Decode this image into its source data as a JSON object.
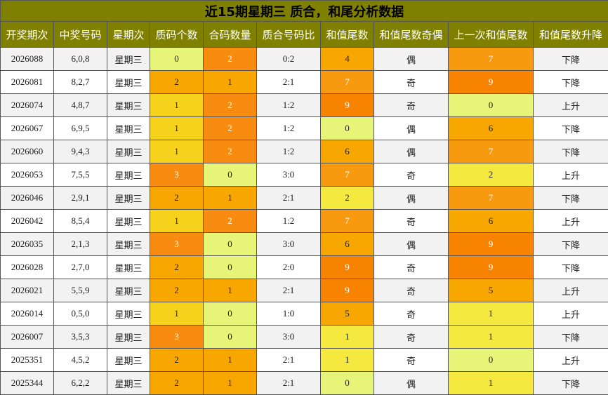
{
  "title": "近15期星期三 质合，和尾分析数据",
  "columns": [
    "开奖期次",
    "中奖号码",
    "星期次",
    "质码个数",
    "合码数量",
    "质合号码比",
    "和值尾数",
    "和值尾数奇偶",
    "上一次和值尾数",
    "和值尾数升降"
  ],
  "colors": {
    "header_bg": "#808000",
    "heat_0": "#e6f477",
    "heat_1": "#f5e83f",
    "heat_2": "#f7d21c",
    "heat_3": "#f8a600",
    "heat_4": "#f78c10",
    "heat_5": "#f8a600",
    "heat_6": "#f8a600",
    "heat_7": "#f89a10",
    "heat_9": "#f78300"
  },
  "rows": [
    {
      "period": "2026088",
      "numbers": "6,0,8",
      "weekday": "星期三",
      "prime_count": "0",
      "composite_count": "2",
      "ratio": "0:2",
      "sum_tail": "4",
      "parity": "偶",
      "prev_tail": "7",
      "trend": "下降"
    },
    {
      "period": "2026081",
      "numbers": "8,2,7",
      "weekday": "星期三",
      "prime_count": "2",
      "composite_count": "1",
      "ratio": "2:1",
      "sum_tail": "7",
      "parity": "奇",
      "prev_tail": "9",
      "trend": "下降"
    },
    {
      "period": "2026074",
      "numbers": "4,8,7",
      "weekday": "星期三",
      "prime_count": "1",
      "composite_count": "2",
      "ratio": "1:2",
      "sum_tail": "9",
      "parity": "奇",
      "prev_tail": "0",
      "trend": "上升"
    },
    {
      "period": "2026067",
      "numbers": "6,9,5",
      "weekday": "星期三",
      "prime_count": "1",
      "composite_count": "2",
      "ratio": "1:2",
      "sum_tail": "0",
      "parity": "偶",
      "prev_tail": "6",
      "trend": "下降"
    },
    {
      "period": "2026060",
      "numbers": "9,4,3",
      "weekday": "星期三",
      "prime_count": "1",
      "composite_count": "2",
      "ratio": "1:2",
      "sum_tail": "6",
      "parity": "偶",
      "prev_tail": "7",
      "trend": "下降"
    },
    {
      "period": "2026053",
      "numbers": "7,5,5",
      "weekday": "星期三",
      "prime_count": "3",
      "composite_count": "0",
      "ratio": "3:0",
      "sum_tail": "7",
      "parity": "奇",
      "prev_tail": "2",
      "trend": "上升"
    },
    {
      "period": "2026046",
      "numbers": "2,9,1",
      "weekday": "星期三",
      "prime_count": "2",
      "composite_count": "1",
      "ratio": "2:1",
      "sum_tail": "2",
      "parity": "偶",
      "prev_tail": "7",
      "trend": "下降"
    },
    {
      "period": "2026042",
      "numbers": "8,5,4",
      "weekday": "星期三",
      "prime_count": "1",
      "composite_count": "2",
      "ratio": "1:2",
      "sum_tail": "7",
      "parity": "奇",
      "prev_tail": "6",
      "trend": "上升"
    },
    {
      "period": "2026035",
      "numbers": "2,1,3",
      "weekday": "星期三",
      "prime_count": "3",
      "composite_count": "0",
      "ratio": "3:0",
      "sum_tail": "6",
      "parity": "偶",
      "prev_tail": "9",
      "trend": "下降"
    },
    {
      "period": "2026028",
      "numbers": "2,7,0",
      "weekday": "星期三",
      "prime_count": "2",
      "composite_count": "0",
      "ratio": "2:0",
      "sum_tail": "9",
      "parity": "奇",
      "prev_tail": "9",
      "trend": "下降"
    },
    {
      "period": "2026021",
      "numbers": "5,5,9",
      "weekday": "星期三",
      "prime_count": "2",
      "composite_count": "1",
      "ratio": "2:1",
      "sum_tail": "9",
      "parity": "奇",
      "prev_tail": "5",
      "trend": "上升"
    },
    {
      "period": "2026014",
      "numbers": "0,5,0",
      "weekday": "星期三",
      "prime_count": "1",
      "composite_count": "0",
      "ratio": "1:0",
      "sum_tail": "5",
      "parity": "奇",
      "prev_tail": "1",
      "trend": "上升"
    },
    {
      "period": "2026007",
      "numbers": "3,5,3",
      "weekday": "星期三",
      "prime_count": "3",
      "composite_count": "0",
      "ratio": "3:0",
      "sum_tail": "1",
      "parity": "奇",
      "prev_tail": "1",
      "trend": "下降"
    },
    {
      "period": "2025351",
      "numbers": "4,5,2",
      "weekday": "星期三",
      "prime_count": "2",
      "composite_count": "1",
      "ratio": "2:1",
      "sum_tail": "1",
      "parity": "奇",
      "prev_tail": "0",
      "trend": "上升"
    },
    {
      "period": "2025344",
      "numbers": "6,2,2",
      "weekday": "星期三",
      "prime_count": "2",
      "composite_count": "1",
      "ratio": "2:1",
      "sum_tail": "0",
      "parity": "偶",
      "prev_tail": "1",
      "trend": "下降"
    }
  ]
}
